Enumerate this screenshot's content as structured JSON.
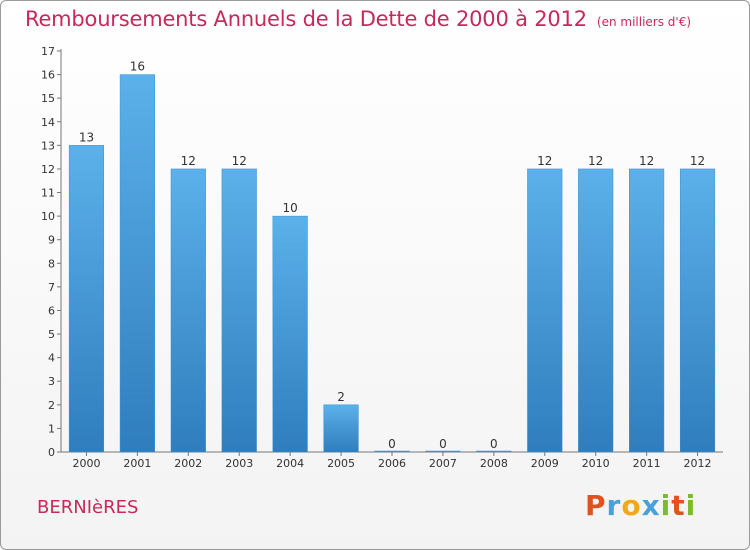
{
  "header": {
    "title": "Remboursements Annuels de la Dette de 2000 à 2012",
    "unit": "(en milliers d'€)"
  },
  "footer": {
    "town": "BERNIèRES",
    "brand": "Proxiti"
  },
  "colors": {
    "bar": "#3d95d6",
    "bar_dark": "#2f7dbd",
    "title": "#c8285a",
    "brand_p": "#e0531f",
    "brand_r": "#4aa0d8",
    "brand_o": "#f2a81d",
    "brand_x": "#4aa0d8",
    "brand_i": "#7dbb2a",
    "brand_t": "#e0531f",
    "brand_i2": "#7dbb2a"
  },
  "chart_data": {
    "type": "bar",
    "title": "Remboursements Annuels de la Dette de 2000 à 2012",
    "subtitle": "(en milliers d'€)",
    "categories": [
      "2000",
      "2001",
      "2002",
      "2003",
      "2004",
      "2005",
      "2006",
      "2007",
      "2008",
      "2009",
      "2010",
      "2011",
      "2012"
    ],
    "values": [
      13,
      16,
      12,
      12,
      10,
      2,
      0,
      0,
      0,
      12,
      12,
      12,
      12
    ],
    "data_labels": [
      "13",
      "16",
      "12",
      "12",
      "10",
      "2",
      "0",
      "0",
      "0",
      "12",
      "12",
      "12",
      "12"
    ],
    "yticks": [
      "0",
      "1",
      "2",
      "3",
      "4",
      "5",
      "6",
      "7",
      "8",
      "9",
      "10",
      "11",
      "12",
      "13",
      "14",
      "15",
      "16",
      "17"
    ],
    "ylim": [
      0,
      17
    ],
    "xlabel": "",
    "ylabel": "",
    "grid": false,
    "legend": "none"
  }
}
